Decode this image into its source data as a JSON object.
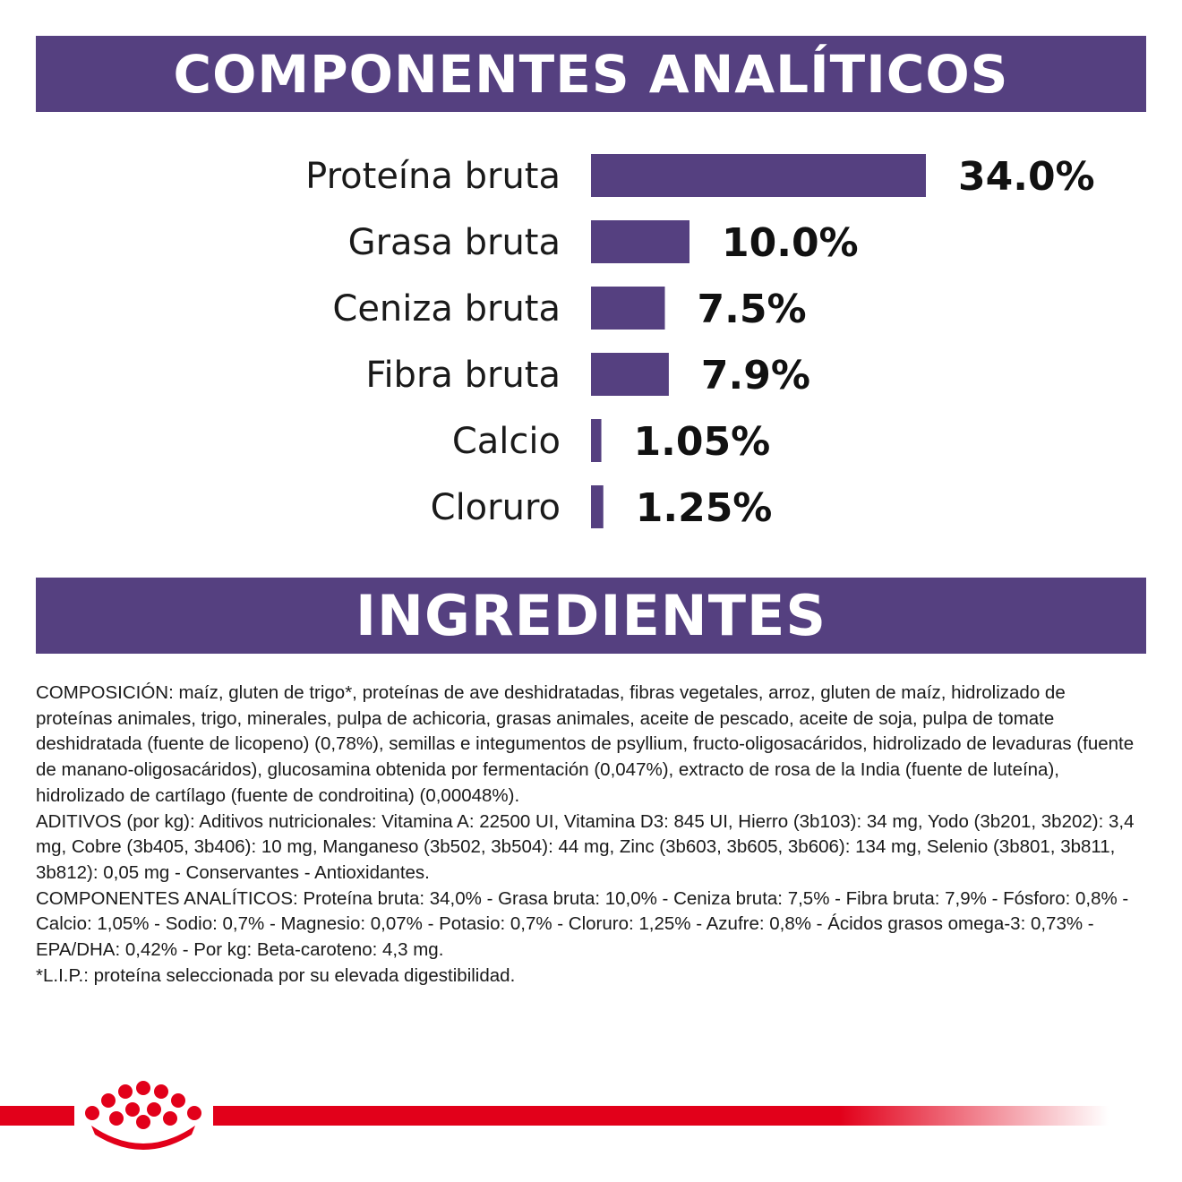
{
  "headers": {
    "analytical": "COMPONENTES ANALÍTICOS",
    "ingredients": "INGREDIENTES"
  },
  "chart_data": {
    "type": "bar",
    "orientation": "horizontal",
    "categories": [
      "Proteína bruta",
      "Grasa bruta",
      "Ceniza bruta",
      "Fibra bruta",
      "Calcio",
      "Cloruro"
    ],
    "values": [
      34.0,
      10.0,
      7.5,
      7.9,
      1.05,
      1.25
    ],
    "value_labels": [
      "34.0%",
      "10.0%",
      "7.5%",
      "7.9%",
      "1.05%",
      "1.25%"
    ],
    "xlim": [
      0,
      34.0
    ],
    "grid": false,
    "legend": "none",
    "bar_color": "#554080"
  },
  "ingredients_text": [
    "COMPOSICIÓN: maíz, gluten de trigo*, proteínas de ave deshidratadas, fibras vegetales, arroz, gluten de maíz, hidrolizado de proteínas animales, trigo, minerales, pulpa de achicoria, grasas animales, aceite de pescado, aceite de soja, pulpa de tomate deshidratada (fuente de licopeno) (0,78%), semillas e integumentos de psyllium, fructo-oligosacáridos, hidrolizado de levaduras (fuente de manano-oligosacáridos), glucosamina obtenida por fermentación (0,047%), extracto de rosa de la India (fuente de luteína), hidrolizado de cartílago (fuente de condroitina) (0,00048%).",
    "ADITIVOS (por kg): Aditivos nutricionales: Vitamina A: 22500 UI, Vitamina D3: 845 UI, Hierro (3b103): 34 mg, Yodo (3b201, 3b202): 3,4 mg, Cobre (3b405, 3b406): 10 mg, Manganeso (3b502, 3b504): 44 mg, Zinc (3b603, 3b605, 3b606): 134 mg, Selenio (3b801, 3b811, 3b812): 0,05 mg - Conservantes - Antioxidantes.",
    "COMPONENTES ANALÍTICOS: Proteína bruta: 34,0% - Grasa bruta: 10,0% - Ceniza bruta: 7,5% - Fibra bruta: 7,9% - Fósforo: 0,8% - Calcio: 1,05% - Sodio: 0,7% - Magnesio: 0,07% - Potasio: 0,7% - Cloruro: 1,25% - Azufre: 0,8% - Ácidos grasos omega-3: 0,73% - EPA/DHA: 0,42% - Por kg: Beta-caroteno: 4,3 mg.",
    "*L.I.P.: proteína seleccionada por su elevada digestibilidad."
  ],
  "colors": {
    "band": "#554080",
    "brand_red": "#e2001a"
  },
  "icons": {
    "brand": "royal-crown-icon"
  }
}
